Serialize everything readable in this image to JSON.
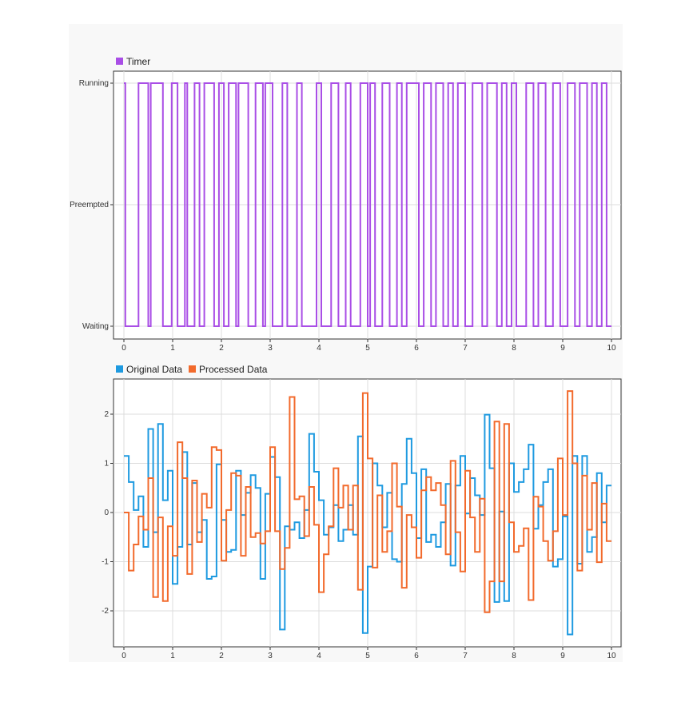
{
  "chart_data": [
    {
      "type": "line",
      "step": true,
      "legend": [
        {
          "name": "Timer",
          "color": "#a94ee6"
        }
      ],
      "legend_position": "top-left",
      "xlim": [
        0,
        10
      ],
      "x_ticks": [
        "0",
        "1",
        "2",
        "3",
        "4",
        "5",
        "6",
        "7",
        "8",
        "9",
        "10"
      ],
      "y_categories": [
        "Waiting",
        "Preempted",
        "Running"
      ],
      "series": [
        {
          "name": "Timer",
          "color": "#a94ee6",
          "x": [
            0,
            0.03,
            0.3,
            0.5,
            0.55,
            0.8,
            0.98,
            1.1,
            1.25,
            1.3,
            1.45,
            1.55,
            1.65,
            1.85,
            1.95,
            2.05,
            2.15,
            2.3,
            2.35,
            2.55,
            2.7,
            2.85,
            2.9,
            3.05,
            3.25,
            3.35,
            3.55,
            3.65,
            3.95,
            4.05,
            4.25,
            4.4,
            4.55,
            4.65,
            4.85,
            5.0,
            5.05,
            5.15,
            5.3,
            5.45,
            5.6,
            5.7,
            5.8,
            6.05,
            6.15,
            6.3,
            6.4,
            6.55,
            6.65,
            6.75,
            6.85,
            7.0,
            7.15,
            7.35,
            7.45,
            7.65,
            7.75,
            7.85,
            7.95,
            8.05,
            8.25,
            8.4,
            8.5,
            8.65,
            8.8,
            8.95,
            9.1,
            9.25,
            9.35,
            9.5,
            9.6,
            9.7,
            9.8,
            9.9,
            10.0
          ],
          "y": [
            2,
            0,
            2,
            0,
            2,
            0,
            2,
            0,
            2,
            0,
            2,
            0,
            2,
            0,
            2,
            0,
            2,
            0,
            2,
            0,
            2,
            0,
            2,
            0,
            2,
            0,
            2,
            0,
            2,
            0,
            2,
            0,
            2,
            0,
            2,
            0,
            2,
            0,
            2,
            0,
            2,
            0,
            2,
            0,
            2,
            0,
            2,
            0,
            2,
            0,
            2,
            0,
            2,
            0,
            2,
            0,
            2,
            0,
            2,
            0,
            2,
            0,
            2,
            0,
            2,
            0,
            2,
            0,
            2,
            0,
            2,
            0,
            2,
            0,
            0
          ]
        }
      ]
    },
    {
      "type": "line",
      "step": true,
      "legend": [
        {
          "name": "Original Data",
          "color": "#1e9ae0"
        },
        {
          "name": "Processed Data",
          "color": "#f26a2c"
        }
      ],
      "legend_position": "top-left",
      "xlim": [
        0,
        10
      ],
      "ylim": [
        -2.75,
        2.65
      ],
      "x_ticks": [
        "0",
        "1",
        "2",
        "3",
        "4",
        "5",
        "6",
        "7",
        "8",
        "9",
        "10"
      ],
      "y_ticks": [
        "2",
        "1",
        "0",
        "-1",
        "-2"
      ],
      "series": [
        {
          "name": "Original Data",
          "color": "#1e9ae0",
          "x": [
            0.0,
            0.1,
            0.2,
            0.3,
            0.4,
            0.5,
            0.6,
            0.7,
            0.8,
            0.9,
            1.0,
            1.1,
            1.2,
            1.3,
            1.4,
            1.5,
            1.6,
            1.7,
            1.8,
            1.9,
            2.0,
            2.1,
            2.2,
            2.3,
            2.4,
            2.5,
            2.6,
            2.7,
            2.8,
            2.9,
            3.0,
            3.1,
            3.2,
            3.3,
            3.4,
            3.5,
            3.6,
            3.7,
            3.8,
            3.9,
            4.0,
            4.1,
            4.2,
            4.3,
            4.4,
            4.5,
            4.6,
            4.7,
            4.8,
            4.9,
            5.0,
            5.1,
            5.2,
            5.3,
            5.4,
            5.5,
            5.6,
            5.7,
            5.8,
            5.9,
            6.0,
            6.1,
            6.2,
            6.3,
            6.4,
            6.5,
            6.6,
            6.7,
            6.8,
            6.9,
            7.0,
            7.1,
            7.2,
            7.3,
            7.4,
            7.5,
            7.6,
            7.7,
            7.8,
            7.9,
            8.0,
            8.1,
            8.2,
            8.3,
            8.4,
            8.5,
            8.6,
            8.7,
            8.8,
            8.9,
            9.0,
            9.1,
            9.2,
            9.3,
            9.4,
            9.5,
            9.6,
            9.7,
            9.8,
            9.9,
            10.0
          ],
          "y": [
            1.15,
            0.62,
            0.05,
            0.33,
            -0.7,
            1.7,
            -0.4,
            1.8,
            0.25,
            0.85,
            -1.45,
            -0.7,
            1.23,
            -0.65,
            0.6,
            -0.4,
            -0.15,
            -1.35,
            -1.3,
            0.98,
            -0.15,
            -0.8,
            -0.76,
            0.85,
            -0.05,
            0.4,
            0.76,
            0.5,
            -1.35,
            0.38,
            1.13,
            0.72,
            -2.38,
            -0.28,
            -0.35,
            -0.2,
            -0.52,
            0.05,
            1.6,
            0.83,
            0.25,
            -0.45,
            -0.3,
            0.15,
            -0.58,
            -0.35,
            0.15,
            -0.45,
            1.55,
            -2.45,
            -1.1,
            1.0,
            0.55,
            -0.3,
            0.4,
            -0.95,
            -1.0,
            0.58,
            1.5,
            0.8,
            -0.52,
            0.88,
            -0.6,
            -0.45,
            -0.7,
            -0.2,
            0.58,
            -1.08,
            0.55,
            1.15,
            -0.02,
            0.7,
            0.35,
            -0.05,
            1.99,
            0.9,
            -1.82,
            0.02,
            -1.8,
            1.0,
            0.42,
            0.62,
            0.88,
            1.38,
            -0.33,
            0.15,
            0.62,
            0.88,
            -1.1,
            -0.95,
            -0.08,
            -2.48,
            1.15,
            -1.04,
            1.15,
            -0.8,
            -0.5,
            0.8,
            -0.2,
            0.55,
            0.55
          ]
        },
        {
          "name": "Processed Data",
          "color": "#f26a2c",
          "x": [
            0.0,
            0.1,
            0.2,
            0.3,
            0.4,
            0.5,
            0.6,
            0.7,
            0.8,
            0.9,
            1.0,
            1.1,
            1.2,
            1.3,
            1.4,
            1.5,
            1.6,
            1.7,
            1.8,
            1.9,
            2.0,
            2.1,
            2.2,
            2.3,
            2.4,
            2.5,
            2.6,
            2.7,
            2.8,
            2.9,
            3.0,
            3.1,
            3.2,
            3.3,
            3.4,
            3.5,
            3.6,
            3.7,
            3.8,
            3.9,
            4.0,
            4.1,
            4.2,
            4.3,
            4.4,
            4.5,
            4.6,
            4.7,
            4.8,
            4.9,
            5.0,
            5.1,
            5.2,
            5.3,
            5.4,
            5.5,
            5.6,
            5.7,
            5.8,
            5.9,
            6.0,
            6.1,
            6.2,
            6.3,
            6.4,
            6.5,
            6.6,
            6.7,
            6.8,
            6.9,
            7.0,
            7.1,
            7.2,
            7.3,
            7.4,
            7.5,
            7.6,
            7.7,
            7.8,
            7.9,
            8.0,
            8.1,
            8.2,
            8.3,
            8.4,
            8.5,
            8.6,
            8.7,
            8.8,
            8.9,
            9.0,
            9.1,
            9.2,
            9.3,
            9.4,
            9.5,
            9.6,
            9.7,
            9.8,
            9.9,
            10.0
          ],
          "y": [
            0.0,
            -1.18,
            -0.65,
            -0.08,
            -0.35,
            0.7,
            -1.72,
            -0.1,
            -1.8,
            -0.28,
            -0.88,
            1.43,
            0.7,
            -1.25,
            0.65,
            -0.6,
            0.38,
            0.1,
            1.33,
            1.27,
            -0.98,
            0.05,
            0.8,
            0.75,
            -0.88,
            0.52,
            -0.5,
            -0.42,
            -0.63,
            -0.38,
            1.33,
            -0.38,
            -1.15,
            -0.72,
            2.35,
            0.27,
            0.33,
            -0.48,
            0.52,
            -0.25,
            -1.62,
            -0.85,
            -0.28,
            0.9,
            0.1,
            0.55,
            -0.35,
            0.55,
            -1.57,
            2.43,
            1.1,
            -1.12,
            0.35,
            -0.8,
            -0.38,
            1.0,
            0.12,
            -1.53,
            -0.05,
            -0.3,
            -0.92,
            0.45,
            0.72,
            0.45,
            0.6,
            0.15,
            -0.85,
            1.05,
            -0.4,
            -1.2,
            0.85,
            -0.1,
            -0.8,
            0.28,
            -2.03,
            -1.4,
            1.85,
            -1.4,
            1.8,
            -0.2,
            -0.8,
            -0.68,
            -0.32,
            -1.78,
            0.32,
            0.12,
            -0.58,
            -0.98,
            -0.38,
            1.1,
            -0.05,
            2.47,
            1.0,
            -1.18,
            0.75,
            -0.35,
            0.6,
            -1.01,
            0.18,
            -0.58,
            -0.58
          ]
        }
      ]
    }
  ]
}
